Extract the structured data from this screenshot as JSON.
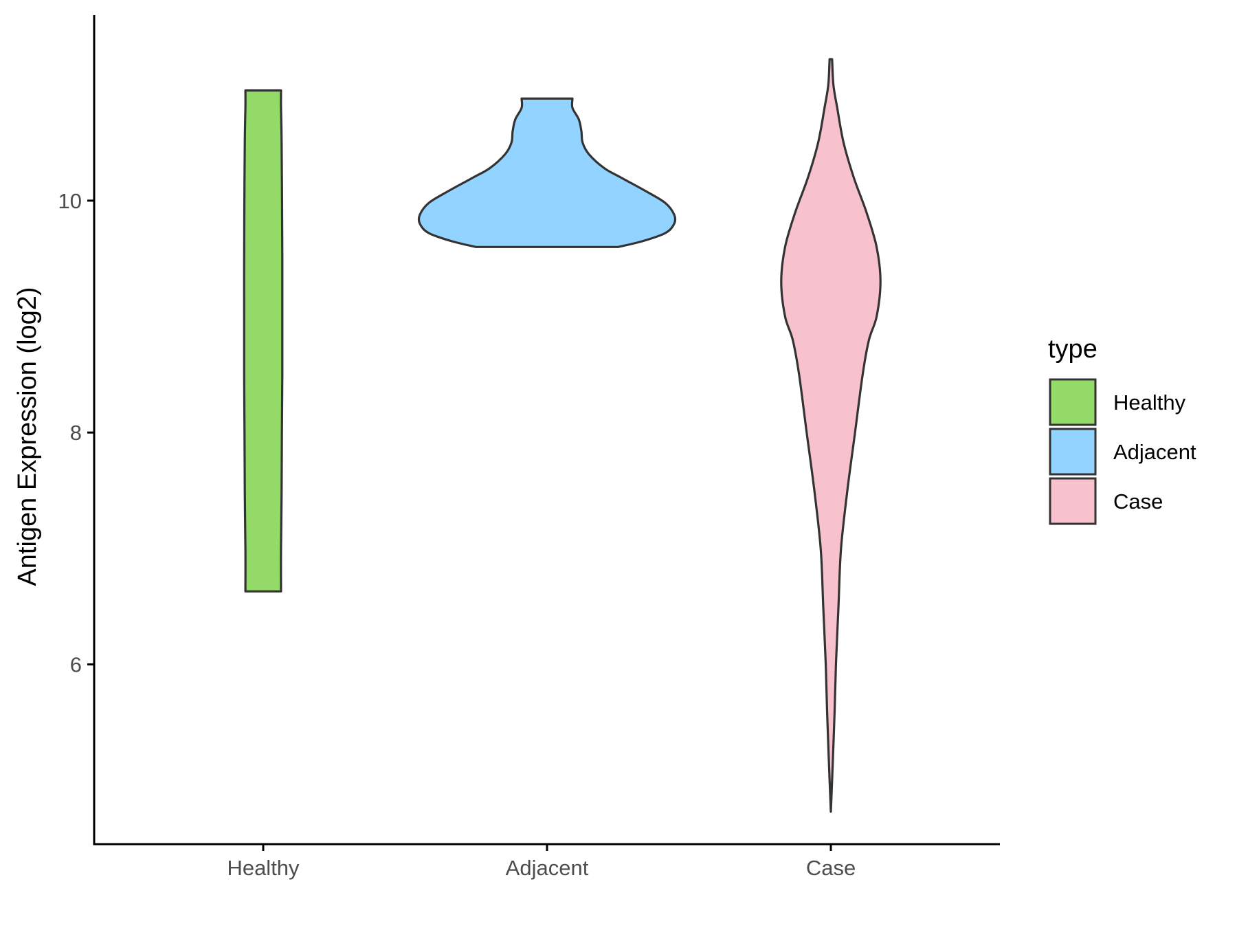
{
  "chart_data": {
    "type": "violin",
    "categories": [
      "Healthy",
      "Adjacent",
      "Case"
    ],
    "ylabel": "Antigen Expression (log2)",
    "xlabel": "",
    "ylim": [
      4.45,
      11.6
    ],
    "yticks": [
      6,
      8,
      10
    ],
    "grid": false,
    "legend": {
      "title": "type",
      "placement": "right",
      "entries": [
        "Healthy",
        "Adjacent",
        "Case"
      ]
    },
    "series": [
      {
        "name": "Healthy",
        "color": "#93DA69",
        "range": [
          6.63,
          10.95
        ],
        "profile": [
          [
            6.63,
            0.14
          ],
          [
            7.0,
            0.14
          ],
          [
            7.5,
            0.145
          ],
          [
            8.0,
            0.147
          ],
          [
            8.5,
            0.15
          ],
          [
            9.0,
            0.15
          ],
          [
            9.5,
            0.15
          ],
          [
            10.0,
            0.148
          ],
          [
            10.5,
            0.145
          ],
          [
            10.8,
            0.14
          ],
          [
            10.95,
            0.14
          ]
        ]
      },
      {
        "name": "Adjacent",
        "color": "#93D3FF",
        "range": [
          9.6,
          10.88
        ],
        "profile": [
          [
            9.6,
            0.56
          ],
          [
            9.65,
            0.75
          ],
          [
            9.72,
            0.93
          ],
          [
            9.8,
            1.0
          ],
          [
            9.88,
            1.0
          ],
          [
            9.98,
            0.93
          ],
          [
            10.08,
            0.78
          ],
          [
            10.2,
            0.58
          ],
          [
            10.28,
            0.45
          ],
          [
            10.4,
            0.33
          ],
          [
            10.5,
            0.28
          ],
          [
            10.6,
            0.27
          ],
          [
            10.7,
            0.25
          ],
          [
            10.8,
            0.2
          ],
          [
            10.88,
            0.2
          ]
        ]
      },
      {
        "name": "Case",
        "color": "#F7C1CD",
        "range": [
          4.73,
          11.22
        ],
        "profile": [
          [
            4.73,
            0.0
          ],
          [
            5.0,
            0.01
          ],
          [
            5.3,
            0.02
          ],
          [
            5.6,
            0.03
          ],
          [
            6.0,
            0.04
          ],
          [
            6.5,
            0.06
          ],
          [
            7.0,
            0.08
          ],
          [
            7.5,
            0.13
          ],
          [
            8.0,
            0.19
          ],
          [
            8.5,
            0.25
          ],
          [
            8.8,
            0.3
          ],
          [
            9.0,
            0.36
          ],
          [
            9.3,
            0.39
          ],
          [
            9.6,
            0.36
          ],
          [
            9.9,
            0.28
          ],
          [
            10.2,
            0.18
          ],
          [
            10.5,
            0.1
          ],
          [
            10.8,
            0.05
          ],
          [
            11.0,
            0.02
          ],
          [
            11.22,
            0.01
          ]
        ]
      }
    ]
  }
}
